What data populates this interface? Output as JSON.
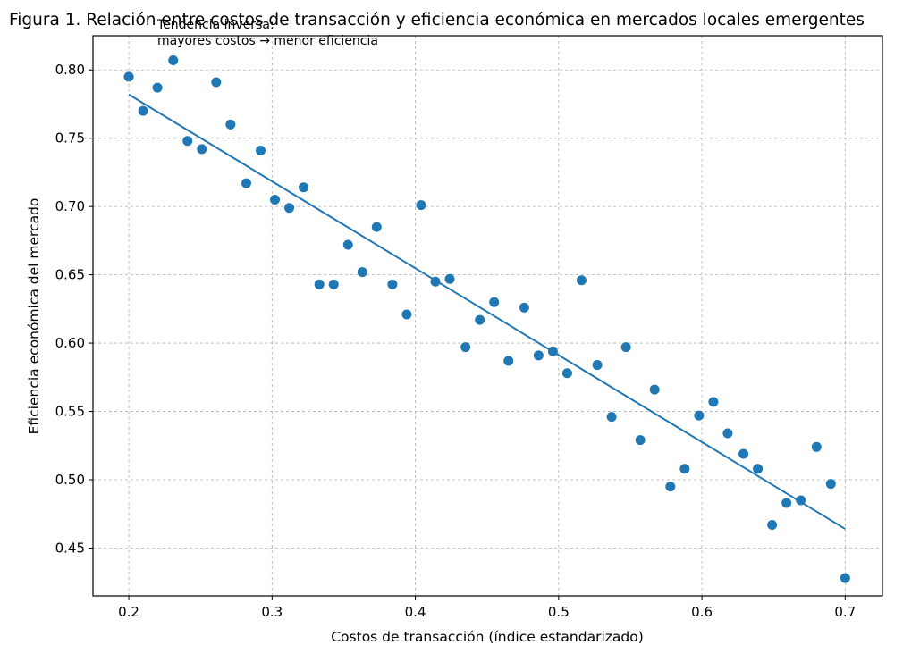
{
  "chart_data": {
    "type": "scatter",
    "title": "Figura 1. Relación entre costos de transacción y eficiencia económica en mercados locales emergentes",
    "xlabel": "Costos de transacción (índice estandarizado)",
    "ylabel": "Eficiencia económica del mercado",
    "xlim": [
      0.175,
      0.726
    ],
    "ylim": [
      0.415,
      0.825
    ],
    "xticks": [
      0.2,
      0.3,
      0.4,
      0.5,
      0.6,
      0.7
    ],
    "xtick_labels": [
      "0.2",
      "0.3",
      "0.4",
      "0.5",
      "0.6",
      "0.7"
    ],
    "yticks": [
      0.45,
      0.5,
      0.55,
      0.6,
      0.65,
      0.7,
      0.75,
      0.8
    ],
    "ytick_labels": [
      "0.45",
      "0.50",
      "0.55",
      "0.60",
      "0.65",
      "0.70",
      "0.75",
      "0.80"
    ],
    "grid": true,
    "color": "#1f77b4",
    "points": [
      {
        "x": 0.2,
        "y": 0.795
      },
      {
        "x": 0.21,
        "y": 0.77
      },
      {
        "x": 0.22,
        "y": 0.787
      },
      {
        "x": 0.231,
        "y": 0.807
      },
      {
        "x": 0.241,
        "y": 0.748
      },
      {
        "x": 0.251,
        "y": 0.742
      },
      {
        "x": 0.261,
        "y": 0.791
      },
      {
        "x": 0.271,
        "y": 0.76
      },
      {
        "x": 0.282,
        "y": 0.717
      },
      {
        "x": 0.292,
        "y": 0.741
      },
      {
        "x": 0.302,
        "y": 0.705
      },
      {
        "x": 0.312,
        "y": 0.699
      },
      {
        "x": 0.322,
        "y": 0.714
      },
      {
        "x": 0.333,
        "y": 0.643
      },
      {
        "x": 0.343,
        "y": 0.643
      },
      {
        "x": 0.353,
        "y": 0.672
      },
      {
        "x": 0.363,
        "y": 0.652
      },
      {
        "x": 0.373,
        "y": 0.685
      },
      {
        "x": 0.384,
        "y": 0.643
      },
      {
        "x": 0.394,
        "y": 0.621
      },
      {
        "x": 0.404,
        "y": 0.701
      },
      {
        "x": 0.414,
        "y": 0.645
      },
      {
        "x": 0.424,
        "y": 0.647
      },
      {
        "x": 0.435,
        "y": 0.597
      },
      {
        "x": 0.445,
        "y": 0.617
      },
      {
        "x": 0.455,
        "y": 0.63
      },
      {
        "x": 0.465,
        "y": 0.587
      },
      {
        "x": 0.476,
        "y": 0.626
      },
      {
        "x": 0.486,
        "y": 0.591
      },
      {
        "x": 0.496,
        "y": 0.594
      },
      {
        "x": 0.506,
        "y": 0.578
      },
      {
        "x": 0.516,
        "y": 0.646
      },
      {
        "x": 0.527,
        "y": 0.584
      },
      {
        "x": 0.537,
        "y": 0.546
      },
      {
        "x": 0.547,
        "y": 0.597
      },
      {
        "x": 0.557,
        "y": 0.529
      },
      {
        "x": 0.567,
        "y": 0.566
      },
      {
        "x": 0.578,
        "y": 0.495
      },
      {
        "x": 0.588,
        "y": 0.508
      },
      {
        "x": 0.598,
        "y": 0.547
      },
      {
        "x": 0.608,
        "y": 0.557
      },
      {
        "x": 0.618,
        "y": 0.534
      },
      {
        "x": 0.629,
        "y": 0.519
      },
      {
        "x": 0.639,
        "y": 0.508
      },
      {
        "x": 0.649,
        "y": 0.467
      },
      {
        "x": 0.659,
        "y": 0.483
      },
      {
        "x": 0.669,
        "y": 0.485
      },
      {
        "x": 0.68,
        "y": 0.524
      },
      {
        "x": 0.69,
        "y": 0.497
      },
      {
        "x": 0.7,
        "y": 0.428
      }
    ],
    "trend_line": {
      "x": [
        0.2,
        0.7
      ],
      "y": [
        0.782,
        0.464
      ]
    },
    "annotation": {
      "line1": "Tendencia inversa:",
      "line2": "mayores costos → menor eficiencia"
    }
  }
}
